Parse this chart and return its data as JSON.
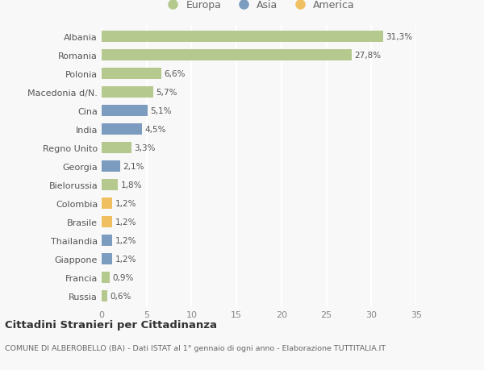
{
  "categories": [
    "Russia",
    "Francia",
    "Giappone",
    "Thailandia",
    "Brasile",
    "Colombia",
    "Bielorussia",
    "Georgia",
    "Regno Unito",
    "India",
    "Cina",
    "Macedonia d/N.",
    "Polonia",
    "Romania",
    "Albania"
  ],
  "values": [
    0.6,
    0.9,
    1.2,
    1.2,
    1.2,
    1.2,
    1.8,
    2.1,
    3.3,
    4.5,
    5.1,
    5.7,
    6.6,
    27.8,
    31.3
  ],
  "labels": [
    "0,6%",
    "0,9%",
    "1,2%",
    "1,2%",
    "1,2%",
    "1,2%",
    "1,8%",
    "2,1%",
    "3,3%",
    "4,5%",
    "5,1%",
    "5,7%",
    "6,6%",
    "27,8%",
    "31,3%"
  ],
  "colors": [
    "#b5c98e",
    "#b5c98e",
    "#7b9bbf",
    "#7b9bbf",
    "#f0c060",
    "#f0c060",
    "#b5c98e",
    "#7b9bbf",
    "#b5c98e",
    "#7b9bbf",
    "#7b9bbf",
    "#b5c98e",
    "#b5c98e",
    "#b5c98e",
    "#b5c98e"
  ],
  "legend_labels": [
    "Europa",
    "Asia",
    "America"
  ],
  "legend_colors": [
    "#b5c98e",
    "#7b9bbf",
    "#f0c060"
  ],
  "title": "Cittadini Stranieri per Cittadinanza",
  "subtitle": "COMUNE DI ALBEROBELLO (BA) - Dati ISTAT al 1° gennaio di ogni anno - Elaborazione TUTTITALIA.IT",
  "xlim": [
    0,
    35
  ],
  "xticks": [
    0,
    5,
    10,
    15,
    20,
    25,
    30,
    35
  ],
  "background_color": "#f8f8f8",
  "grid_color": "#ffffff",
  "bar_height": 0.65
}
